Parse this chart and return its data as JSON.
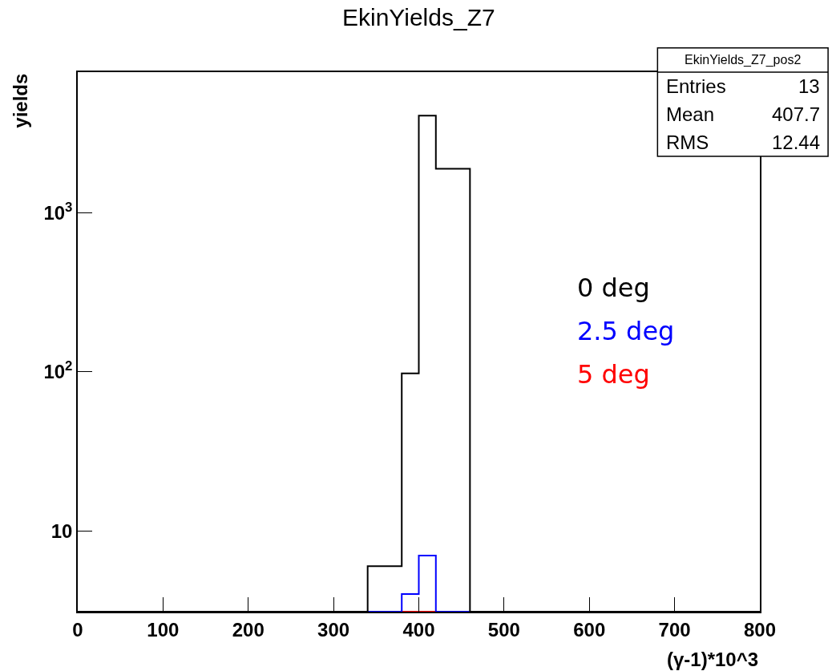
{
  "chart_data": {
    "type": "histogram",
    "title": "EkinYields_Z7",
    "xlabel": "(γ-1)*10^3",
    "ylabel": "yields",
    "bins": [
      0,
      20,
      40,
      60,
      80,
      100,
      120,
      140,
      160,
      180,
      200,
      220,
      240,
      260,
      280,
      300,
      320,
      340,
      360,
      380,
      400,
      420,
      440,
      460,
      480,
      500,
      520,
      540,
      560,
      580,
      600,
      620,
      640,
      660,
      680,
      700,
      720,
      740,
      760,
      780,
      800
    ],
    "series": [
      {
        "name": "0 deg",
        "color": "#000000",
        "values": [
          null,
          null,
          null,
          null,
          null,
          null,
          null,
          null,
          null,
          null,
          null,
          null,
          null,
          null,
          null,
          null,
          null,
          6,
          6,
          98,
          4100,
          1900,
          1900,
          null,
          null,
          null,
          null,
          null,
          null,
          null,
          null,
          null,
          null,
          null,
          null,
          null,
          null,
          null,
          null,
          null
        ]
      },
      {
        "name": "2.5 deg",
        "color": "#0000ff",
        "values": [
          null,
          null,
          null,
          null,
          null,
          null,
          null,
          null,
          null,
          null,
          null,
          null,
          null,
          null,
          null,
          null,
          null,
          null,
          null,
          4,
          7,
          null,
          null,
          null,
          null,
          null,
          null,
          null,
          null,
          null,
          null,
          null,
          null,
          null,
          null,
          null,
          null,
          null,
          null,
          null
        ]
      },
      {
        "name": "5 deg",
        "color": "#ff0000",
        "values": [
          null,
          null,
          null,
          null,
          null,
          null,
          null,
          null,
          null,
          null,
          null,
          null,
          null,
          null,
          null,
          null,
          null,
          null,
          null,
          null,
          null,
          null,
          null,
          null,
          null,
          null,
          null,
          null,
          null,
          null,
          null,
          null,
          null,
          null,
          null,
          null,
          null,
          null,
          null,
          null
        ]
      }
    ],
    "annotations": [
      "EkinYields_Z7_pos2",
      "Entries",
      "13",
      "Mean",
      "407.7",
      "RMS",
      "12.44"
    ],
    "log": "y",
    "xlim": [
      0,
      800
    ],
    "ylim": [
      3.1,
      7700
    ],
    "xticks": [
      0,
      100,
      200,
      300,
      400,
      500,
      600,
      700,
      800
    ],
    "yticks": [
      {
        "value": 10,
        "label": "10"
      },
      {
        "value": 100,
        "label": "10$^{2}$"
      },
      {
        "value": 1000,
        "label": "10$^{3}$"
      }
    ],
    "grid": false,
    "legend": "right"
  }
}
